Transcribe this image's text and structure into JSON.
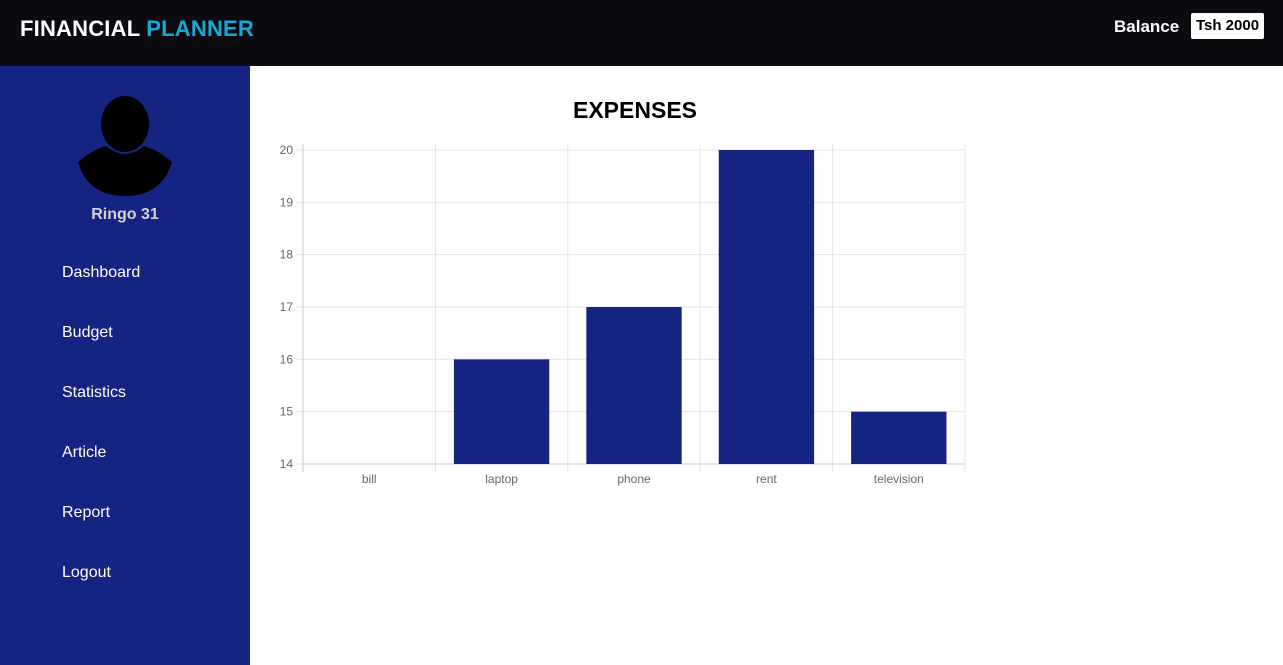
{
  "header": {
    "brand_part1": "FINANCIAL",
    "brand_part2": "PLANNER",
    "balance_label": "Balance",
    "balance_value": "Tsh 2000"
  },
  "sidebar": {
    "avatar_icon": "user-silhouette-icon",
    "username": "Ringo 31",
    "items": [
      {
        "label": "Dashboard"
      },
      {
        "label": "Budget"
      },
      {
        "label": "Statistics"
      },
      {
        "label": "Article"
      },
      {
        "label": "Report"
      },
      {
        "label": "Logout"
      }
    ]
  },
  "colors": {
    "topbar": "#0b0b10",
    "sidebar": "#152383",
    "brand_accent": "#17a9d6",
    "bar": "#152383"
  },
  "chart_data": {
    "type": "bar",
    "title": "EXPENSES",
    "categories": [
      "bill",
      "laptop",
      "phone",
      "rent",
      "television"
    ],
    "values": [
      14,
      16,
      17,
      20,
      15
    ],
    "ylim": [
      14,
      20
    ],
    "yticks": [
      14,
      15,
      16,
      17,
      18,
      19,
      20
    ],
    "grid": true,
    "legend": "none"
  }
}
